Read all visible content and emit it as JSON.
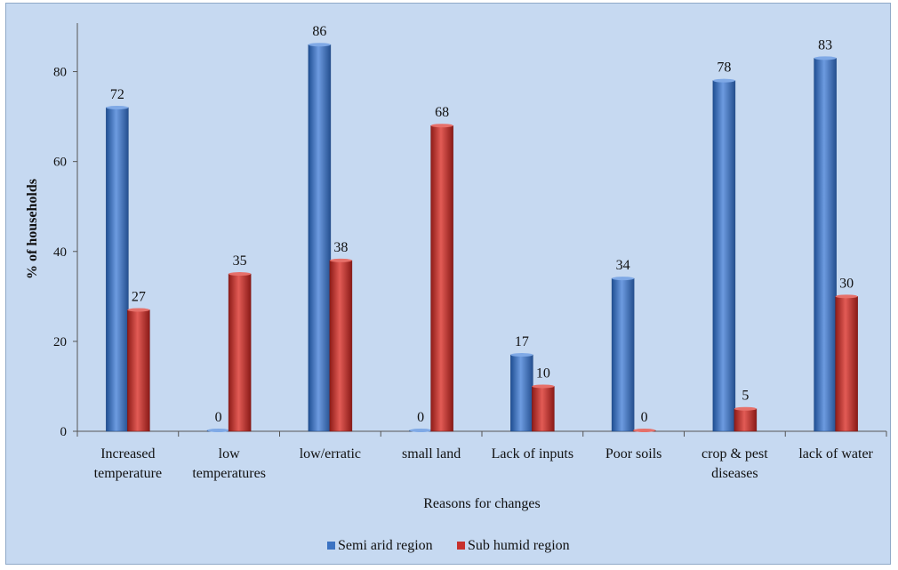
{
  "chart_data": {
    "type": "bar",
    "categories": [
      [
        "Increased",
        "temperature"
      ],
      [
        "low",
        "temperatures"
      ],
      [
        "low/erratic"
      ],
      [
        "small land"
      ],
      [
        "Lack of inputs"
      ],
      [
        "Poor soils"
      ],
      [
        "crop & pest",
        "diseases"
      ],
      [
        "lack of water"
      ]
    ],
    "series": [
      {
        "name": "Semi arid region",
        "values": [
          72,
          0,
          86,
          0,
          17,
          34,
          78,
          83
        ],
        "color": "#3b73c3"
      },
      {
        "name": "Sub humid region",
        "values": [
          27,
          35,
          38,
          68,
          10,
          0,
          5,
          30
        ],
        "color": "#c8312d"
      }
    ],
    "xlabel": "Reasons for changes",
    "ylabel": "% of households",
    "ylim": [
      0,
      90
    ],
    "yticks": [
      0,
      20,
      40,
      60,
      80
    ],
    "grid": false,
    "legend_position": "bottom"
  }
}
